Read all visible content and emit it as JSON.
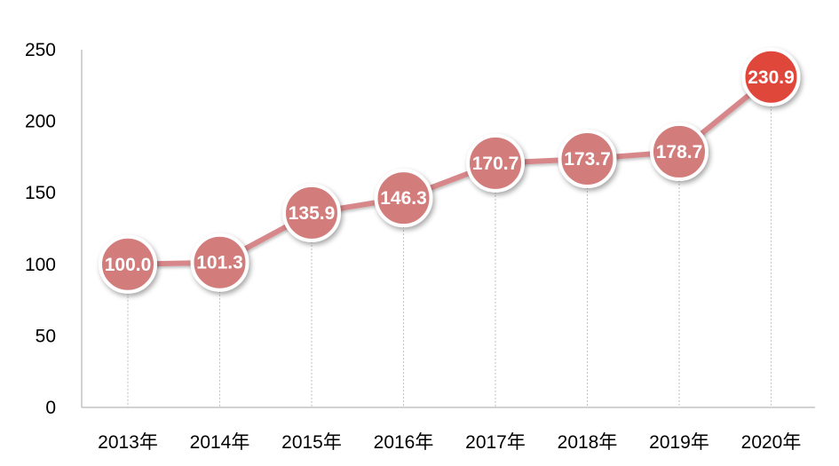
{
  "chart_data": {
    "type": "line",
    "title": "",
    "xlabel": "",
    "ylabel": "",
    "categories": [
      "2013年",
      "2014年",
      "2015年",
      "2016年",
      "2017年",
      "2018年",
      "2019年",
      "2020年"
    ],
    "series": [
      {
        "values": [
          100.0,
          101.3,
          135.9,
          146.3,
          170.7,
          173.7,
          178.7,
          230.9
        ],
        "labels": [
          "100.0",
          "101.3",
          "135.9",
          "146.3",
          "170.7",
          "173.7",
          "178.7",
          "230.9"
        ]
      }
    ],
    "ylim": [
      0,
      250
    ],
    "yticks": [
      0,
      50,
      100,
      150,
      200,
      250
    ],
    "ytick_labels": [
      "0",
      "50",
      "100",
      "150",
      "200",
      "250"
    ],
    "grid": "vertical dashed drop lines",
    "legend": "none",
    "colors": {
      "line": "#d7878a",
      "marker": "#d27c7c",
      "marker_highlight": "#e0473b",
      "marker_ring": "#ffffff",
      "axis": "#a6a6a6",
      "dropline": "#bfbfbf"
    }
  }
}
